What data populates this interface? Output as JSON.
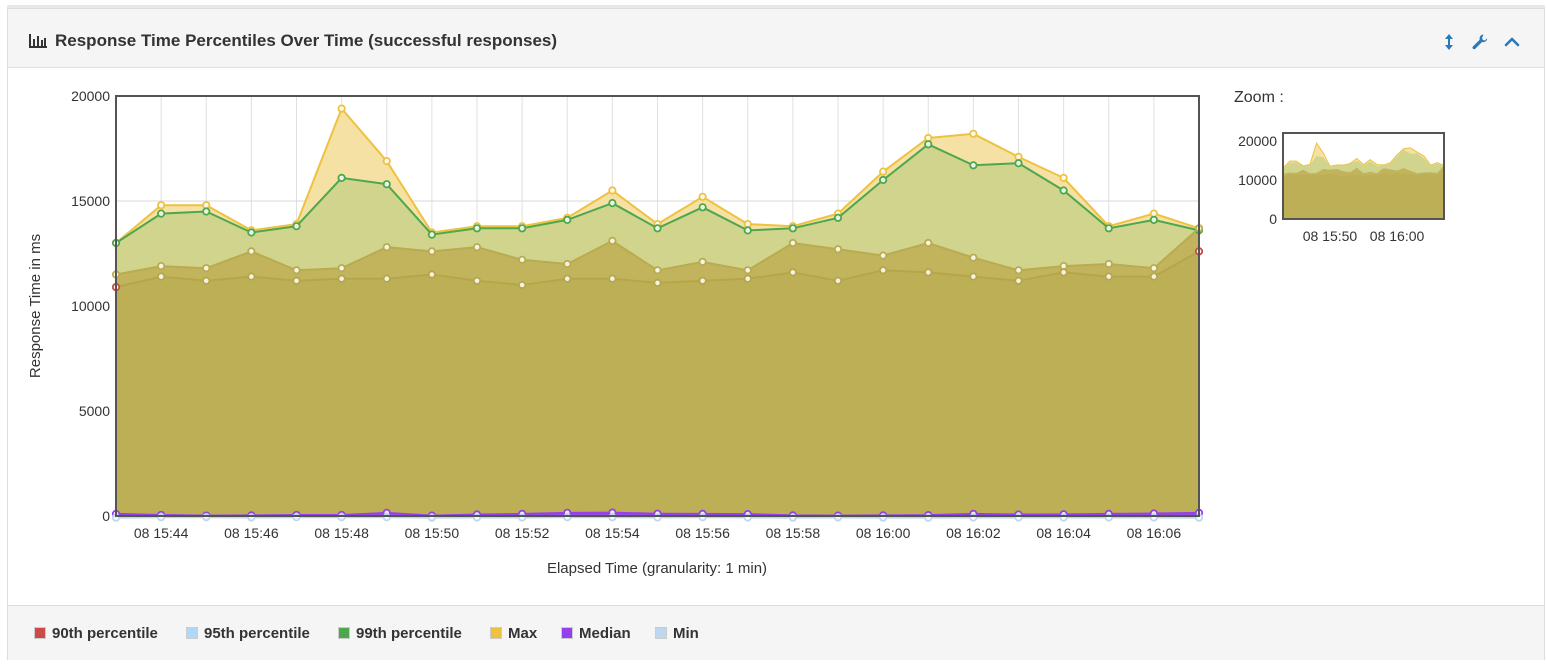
{
  "panel": {
    "title": "Response Time Percentiles Over Time (successful responses)",
    "icons": [
      "bar-chart-icon",
      "resize-vertical-icon",
      "wrench-icon",
      "chevron-up-icon"
    ]
  },
  "zoom": {
    "label": "Zoom :",
    "y_ticks": [
      "20000",
      "10000",
      "0"
    ],
    "x_ticks": [
      "08 15:50",
      "08 16:00"
    ]
  },
  "chart_data": {
    "type": "area",
    "xlabel": "Elapsed Time (granularity: 1 min)",
    "ylabel": "Response Time in ms",
    "ylim": [
      0,
      20000
    ],
    "y_ticks": [
      0,
      5000,
      10000,
      15000,
      20000
    ],
    "x_tick_labels": [
      "08 15:44",
      "08 15:46",
      "08 15:48",
      "08 15:50",
      "08 15:52",
      "08 15:54",
      "08 15:56",
      "08 15:58",
      "08 16:00",
      "08 16:02",
      "08 16:04",
      "08 16:06"
    ],
    "x_times": [
      "15:43",
      "15:44",
      "15:45",
      "15:46",
      "15:47",
      "15:48",
      "15:49",
      "15:50",
      "15:51",
      "15:52",
      "15:53",
      "15:54",
      "15:55",
      "15:56",
      "15:57",
      "15:58",
      "15:59",
      "16:00",
      "16:01",
      "16:02",
      "16:03",
      "16:04",
      "16:05",
      "16:06",
      "16:07"
    ],
    "grid": true,
    "legend_position": "bottom",
    "series": [
      {
        "name": "Max",
        "color": "#edc240",
        "fill": "#f5dfa0",
        "values": [
          13000,
          14800,
          14800,
          13600,
          13900,
          19400,
          16900,
          13500,
          13800,
          13800,
          14200,
          15500,
          13900,
          15200,
          13900,
          13800,
          14400,
          16400,
          18000,
          18200,
          17100,
          16100,
          13800,
          14400,
          13700
        ]
      },
      {
        "name": "99th percentile",
        "color": "#4da74d",
        "fill": "#cdd38a",
        "values": [
          13000,
          14400,
          14500,
          13500,
          13800,
          16100,
          15800,
          13400,
          13700,
          13700,
          14100,
          14900,
          13700,
          14700,
          13600,
          13700,
          14200,
          16000,
          17700,
          16700,
          16800,
          15500,
          13700,
          14100,
          13600
        ]
      },
      {
        "name": "95th percentile",
        "color": "#afd8f8",
        "fill": "#c0b25a",
        "values": [
          11500,
          11900,
          11800,
          12600,
          11700,
          11800,
          12800,
          12600,
          12800,
          12200,
          12000,
          13100,
          11700,
          12100,
          11700,
          13000,
          12700,
          12400,
          13000,
          12300,
          11700,
          11900,
          12000,
          11800,
          13700
        ]
      },
      {
        "name": "90th percentile",
        "color": "#cb4b4b",
        "fill": "#bdaf55",
        "values": [
          10900,
          11400,
          11200,
          11400,
          11200,
          11300,
          11300,
          11500,
          11200,
          11000,
          11300,
          11300,
          11100,
          11200,
          11300,
          11600,
          11200,
          11700,
          11600,
          11400,
          11200,
          11600,
          11400,
          11400,
          12600
        ]
      },
      {
        "name": "Median",
        "color": "#9440ed",
        "fill": "#9440ed",
        "values": [
          100,
          50,
          20,
          30,
          50,
          50,
          150,
          20,
          70,
          100,
          150,
          160,
          110,
          100,
          90,
          30,
          20,
          30,
          40,
          100,
          70,
          80,
          100,
          120,
          150
        ]
      },
      {
        "name": "Min",
        "color": "#bdd7ee",
        "fill": "#bdd7ee",
        "values": [
          -80,
          -60,
          -60,
          -70,
          -60,
          -60,
          -60,
          -80,
          -70,
          -70,
          -60,
          -60,
          -70,
          -60,
          -70,
          -80,
          -70,
          -80,
          -80,
          -70,
          -70,
          -70,
          -70,
          -70,
          -80
        ]
      }
    ]
  },
  "legend": [
    {
      "label": "90th percentile",
      "color": "#cb4b4b"
    },
    {
      "label": "95th percentile",
      "color": "#afd8f8"
    },
    {
      "label": "99th percentile",
      "color": "#4da74d"
    },
    {
      "label": "Max",
      "color": "#edc240"
    },
    {
      "label": "Median",
      "color": "#9440ed"
    },
    {
      "label": "Min",
      "color": "#bdd7ee"
    }
  ]
}
